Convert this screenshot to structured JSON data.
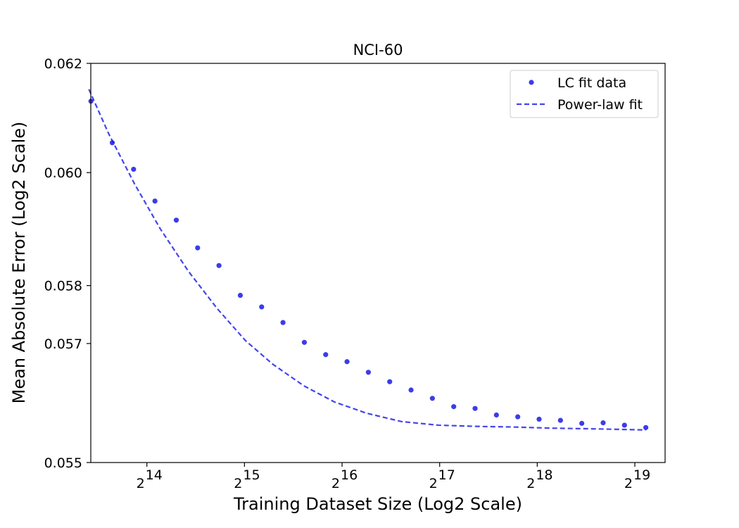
{
  "chart_data": {
    "type": "scatter",
    "title": "NCI-60",
    "xlabel": "Training Dataset Size (Log2 Scale)",
    "ylabel": "Mean Absolute Error (Log2 Scale)",
    "x_scale": "log2",
    "y_scale": "log2",
    "xlim": [
      11000,
      650000
    ],
    "ylim": [
      0.055,
      0.062
    ],
    "x_ticks": [
      {
        "value": 16384,
        "base": "2",
        "exp": "14"
      },
      {
        "value": 32768,
        "base": "2",
        "exp": "15"
      },
      {
        "value": 65536,
        "base": "2",
        "exp": "16"
      },
      {
        "value": 131072,
        "base": "2",
        "exp": "17"
      },
      {
        "value": 262144,
        "base": "2",
        "exp": "18"
      },
      {
        "value": 524288,
        "base": "2",
        "exp": "19"
      }
    ],
    "y_ticks": [
      {
        "value": 0.055,
        "label": "0.055"
      },
      {
        "value": 0.057,
        "label": "0.057"
      },
      {
        "value": 0.058,
        "label": "0.058"
      },
      {
        "value": 0.06,
        "label": "0.060"
      },
      {
        "value": 0.062,
        "label": "0.062"
      }
    ],
    "legend": {
      "position": "top-right",
      "entries": [
        "LC fit data",
        "Power-law fit"
      ]
    },
    "grid": false,
    "colors": {
      "points": "#1a1ae6",
      "fit": "#4444ee"
    },
    "series": [
      {
        "name": "LC fit data",
        "style": "points",
        "x": [
          11010,
          12811,
          14908,
          17349,
          20189,
          23493,
          27338,
          31811,
          37018,
          43077,
          50131,
          58338,
          67887,
          78997,
          91925,
          106972,
          124482,
          144856,
          168563,
          196158,
          228264,
          265629,
          309107,
          359693,
          418582,
          487102,
          566801
        ],
        "y": [
          0.0613,
          0.06054,
          0.06006,
          0.05949,
          0.05915,
          0.05866,
          0.05835,
          0.05783,
          0.05763,
          0.05736,
          0.05702,
          0.05681,
          0.05669,
          0.05651,
          0.05635,
          0.05621,
          0.05607,
          0.05593,
          0.0559,
          0.05579,
          0.05576,
          0.05572,
          0.0557,
          0.05565,
          0.05566,
          0.05562,
          0.05558
        ]
      },
      {
        "name": "Power-law fit",
        "style": "dashed-line",
        "x": [
          10851,
          12500,
          15000,
          18000,
          22000,
          27000,
          33000,
          40000,
          50000,
          62000,
          78000,
          100000,
          130000,
          170000,
          220000,
          290000,
          380000,
          470000,
          566801
        ],
        "y": [
          0.06152,
          0.0607,
          0.0598,
          0.059,
          0.05825,
          0.0576,
          0.05705,
          0.05665,
          0.05628,
          0.05601,
          0.05582,
          0.05568,
          0.05562,
          0.0556,
          0.05559,
          0.05557,
          0.05556,
          0.05555,
          0.05554
        ]
      }
    ]
  }
}
